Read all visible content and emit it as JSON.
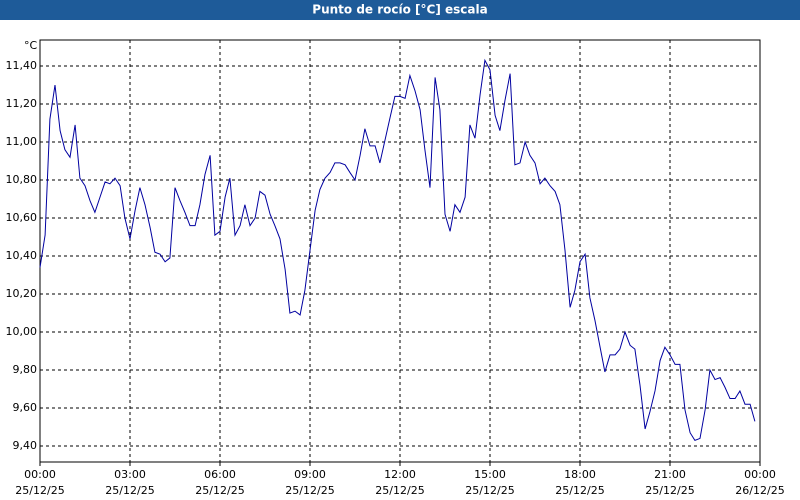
{
  "chart_data": {
    "type": "line",
    "title": "Punto de rocío [°C] escala",
    "y_unit": "°C",
    "x": [
      0,
      0.17,
      0.33,
      0.5,
      0.67,
      0.83,
      1,
      1.17,
      1.33,
      1.5,
      1.67,
      1.83,
      2,
      2.17,
      2.33,
      2.5,
      2.67,
      2.83,
      3,
      3.17,
      3.33,
      3.5,
      3.67,
      3.83,
      4,
      4.17,
      4.33,
      4.5,
      4.67,
      4.83,
      5,
      5.17,
      5.33,
      5.5,
      5.67,
      5.83,
      6,
      6.17,
      6.33,
      6.5,
      6.67,
      6.83,
      7,
      7.17,
      7.33,
      7.5,
      7.67,
      7.83,
      8,
      8.17,
      8.33,
      8.5,
      8.67,
      8.83,
      9,
      9.17,
      9.33,
      9.5,
      9.67,
      9.83,
      10,
      10.17,
      10.33,
      10.5,
      10.67,
      10.83,
      11,
      11.17,
      11.33,
      11.5,
      11.67,
      11.83,
      12,
      12.17,
      12.33,
      12.5,
      12.67,
      12.83,
      13,
      13.17,
      13.33,
      13.5,
      13.67,
      13.83,
      14,
      14.17,
      14.33,
      14.5,
      14.67,
      14.83,
      15,
      15.17,
      15.33,
      15.5,
      15.67,
      15.83,
      16,
      16.17,
      16.33,
      16.5,
      16.67,
      16.83,
      17,
      17.17,
      17.33,
      17.5,
      17.67,
      17.83,
      18,
      18.17,
      18.33,
      18.5,
      18.67,
      18.83,
      19,
      19.17,
      19.33,
      19.5,
      19.67,
      19.83,
      20,
      20.17,
      20.33,
      20.5,
      20.67,
      20.83,
      21,
      21.17,
      21.33,
      21.5,
      21.67,
      21.83,
      22,
      22.17,
      22.33,
      22.5,
      22.67,
      22.83,
      23,
      23.17,
      23.33,
      23.5,
      23.67,
      23.83
    ],
    "series": [
      {
        "name": "Punto de rocío",
        "color": "#0000a0",
        "values": [
          10.34,
          10.51,
          11.12,
          11.3,
          11.06,
          10.96,
          10.92,
          11.09,
          10.81,
          10.77,
          10.69,
          10.63,
          10.71,
          10.79,
          10.78,
          10.81,
          10.77,
          10.6,
          10.49,
          10.64,
          10.76,
          10.67,
          10.55,
          10.42,
          10.41,
          10.37,
          10.39,
          10.76,
          10.69,
          10.63,
          10.56,
          10.56,
          10.67,
          10.83,
          10.93,
          10.51,
          10.53,
          10.71,
          10.81,
          10.51,
          10.56,
          10.67,
          10.56,
          10.6,
          10.74,
          10.72,
          10.62,
          10.56,
          10.49,
          10.33,
          10.1,
          10.11,
          10.09,
          10.22,
          10.43,
          10.64,
          10.75,
          10.81,
          10.84,
          10.89,
          10.89,
          10.88,
          10.84,
          10.8,
          10.93,
          11.07,
          10.98,
          10.98,
          10.89,
          11.01,
          11.13,
          11.24,
          11.24,
          11.23,
          11.35,
          11.27,
          11.17,
          10.96,
          10.76,
          11.34,
          11.17,
          10.62,
          10.53,
          10.67,
          10.63,
          10.71,
          11.09,
          11.02,
          11.25,
          11.43,
          11.38,
          11.14,
          11.06,
          11.22,
          11.36,
          10.88,
          10.89,
          11.0,
          10.93,
          10.89,
          10.78,
          10.81,
          10.77,
          10.74,
          10.67,
          10.43,
          10.13,
          10.22,
          10.37,
          10.41,
          10.18,
          10.06,
          9.92,
          9.79,
          9.88,
          9.88,
          9.91,
          10.0,
          9.93,
          9.91,
          9.72,
          9.49,
          9.58,
          9.69,
          9.85,
          9.92,
          9.88,
          9.83,
          9.83,
          9.59,
          9.47,
          9.43,
          9.44,
          9.59,
          9.8,
          9.75,
          9.76,
          9.71,
          9.65,
          9.65,
          9.69,
          9.62,
          9.62,
          9.53
        ]
      }
    ],
    "xlim": [
      0,
      24
    ],
    "xticks": [
      {
        "value": 0,
        "label": "00:00",
        "date": "25/12/25"
      },
      {
        "value": 3,
        "label": "03:00",
        "date": "25/12/25"
      },
      {
        "value": 6,
        "label": "06:00",
        "date": "25/12/25"
      },
      {
        "value": 9,
        "label": "09:00",
        "date": "25/12/25"
      },
      {
        "value": 12,
        "label": "12:00",
        "date": "25/12/25"
      },
      {
        "value": 15,
        "label": "15:00",
        "date": "25/12/25"
      },
      {
        "value": 18,
        "label": "18:00",
        "date": "25/12/25"
      },
      {
        "value": 21,
        "label": "21:00",
        "date": "25/12/25"
      },
      {
        "value": 24,
        "label": "00:00",
        "date": "26/12/25"
      }
    ],
    "ylim": [
      9.316,
      11.537
    ],
    "yticks": [
      {
        "value": 9.4,
        "label": "9,40"
      },
      {
        "value": 9.6,
        "label": "9,60"
      },
      {
        "value": 9.8,
        "label": "9,80"
      },
      {
        "value": 10.0,
        "label": "10,00"
      },
      {
        "value": 10.2,
        "label": "10,20"
      },
      {
        "value": 10.4,
        "label": "10,40"
      },
      {
        "value": 10.6,
        "label": "10,60"
      },
      {
        "value": 10.8,
        "label": "10,80"
      },
      {
        "value": 11.0,
        "label": "11,00"
      },
      {
        "value": 11.2,
        "label": "11,20"
      },
      {
        "value": 11.4,
        "label": "11,40"
      }
    ],
    "grid": true
  }
}
